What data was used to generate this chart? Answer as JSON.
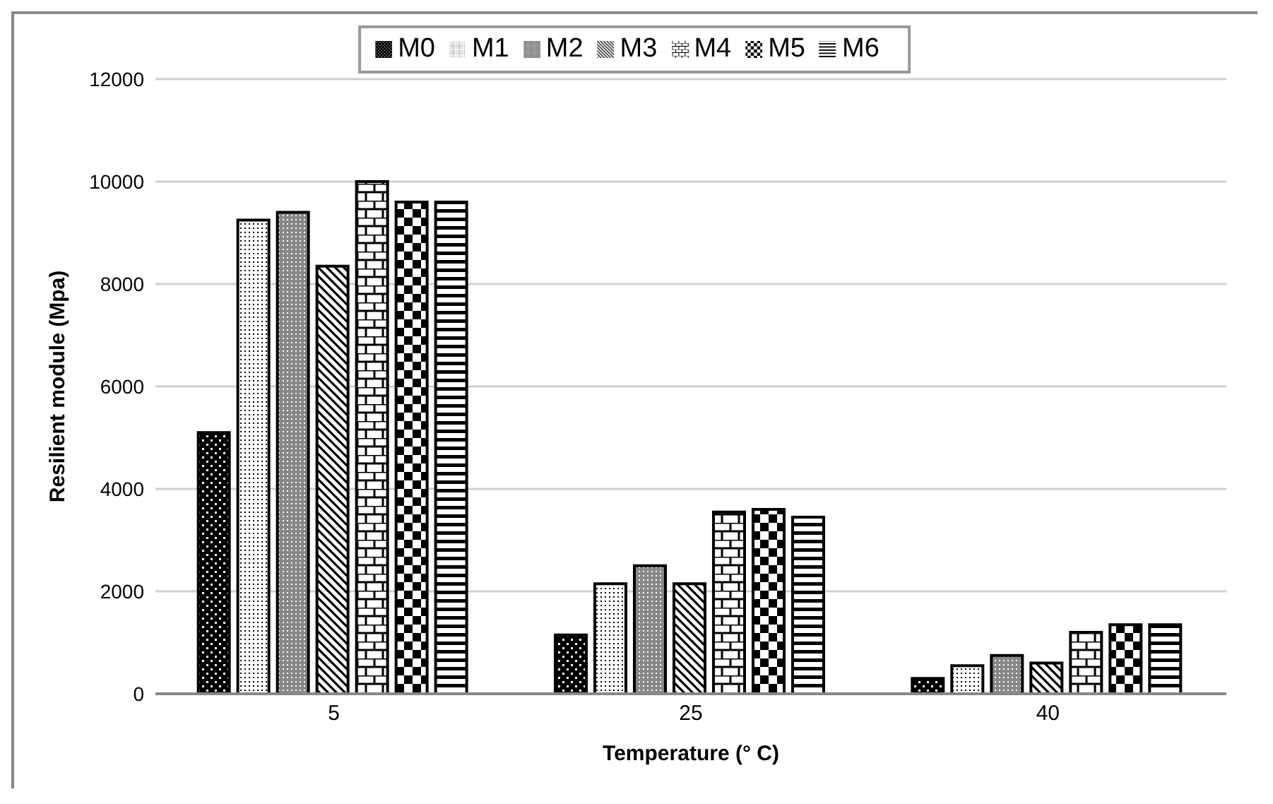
{
  "chart_data": {
    "type": "bar",
    "xlabel": "Temperature (° C)",
    "ylabel": "Resilient module (Mpa)",
    "categories": [
      "5",
      "25",
      "40"
    ],
    "series": [
      {
        "name": "M0",
        "color": "#000000",
        "values": [
          5100,
          1150,
          300
        ]
      },
      {
        "name": "M1",
        "color": "#000000",
        "values": [
          9250,
          2150,
          550
        ]
      },
      {
        "name": "M2",
        "color": "#000000",
        "values": [
          9400,
          2500,
          750
        ]
      },
      {
        "name": "M3",
        "color": "#000000",
        "values": [
          8350,
          2150,
          600
        ]
      },
      {
        "name": "M4",
        "color": "#000000",
        "values": [
          10000,
          3550,
          1200
        ]
      },
      {
        "name": "M5",
        "color": "#000000",
        "values": [
          9600,
          3600,
          1350
        ]
      },
      {
        "name": "M6",
        "color": "#000000",
        "values": [
          9600,
          3450,
          1350
        ]
      }
    ],
    "ylim": [
      0,
      12000
    ],
    "yticks": [
      0,
      2000,
      4000,
      6000,
      8000,
      10000,
      12000
    ],
    "grid": "y",
    "legend": "top"
  }
}
